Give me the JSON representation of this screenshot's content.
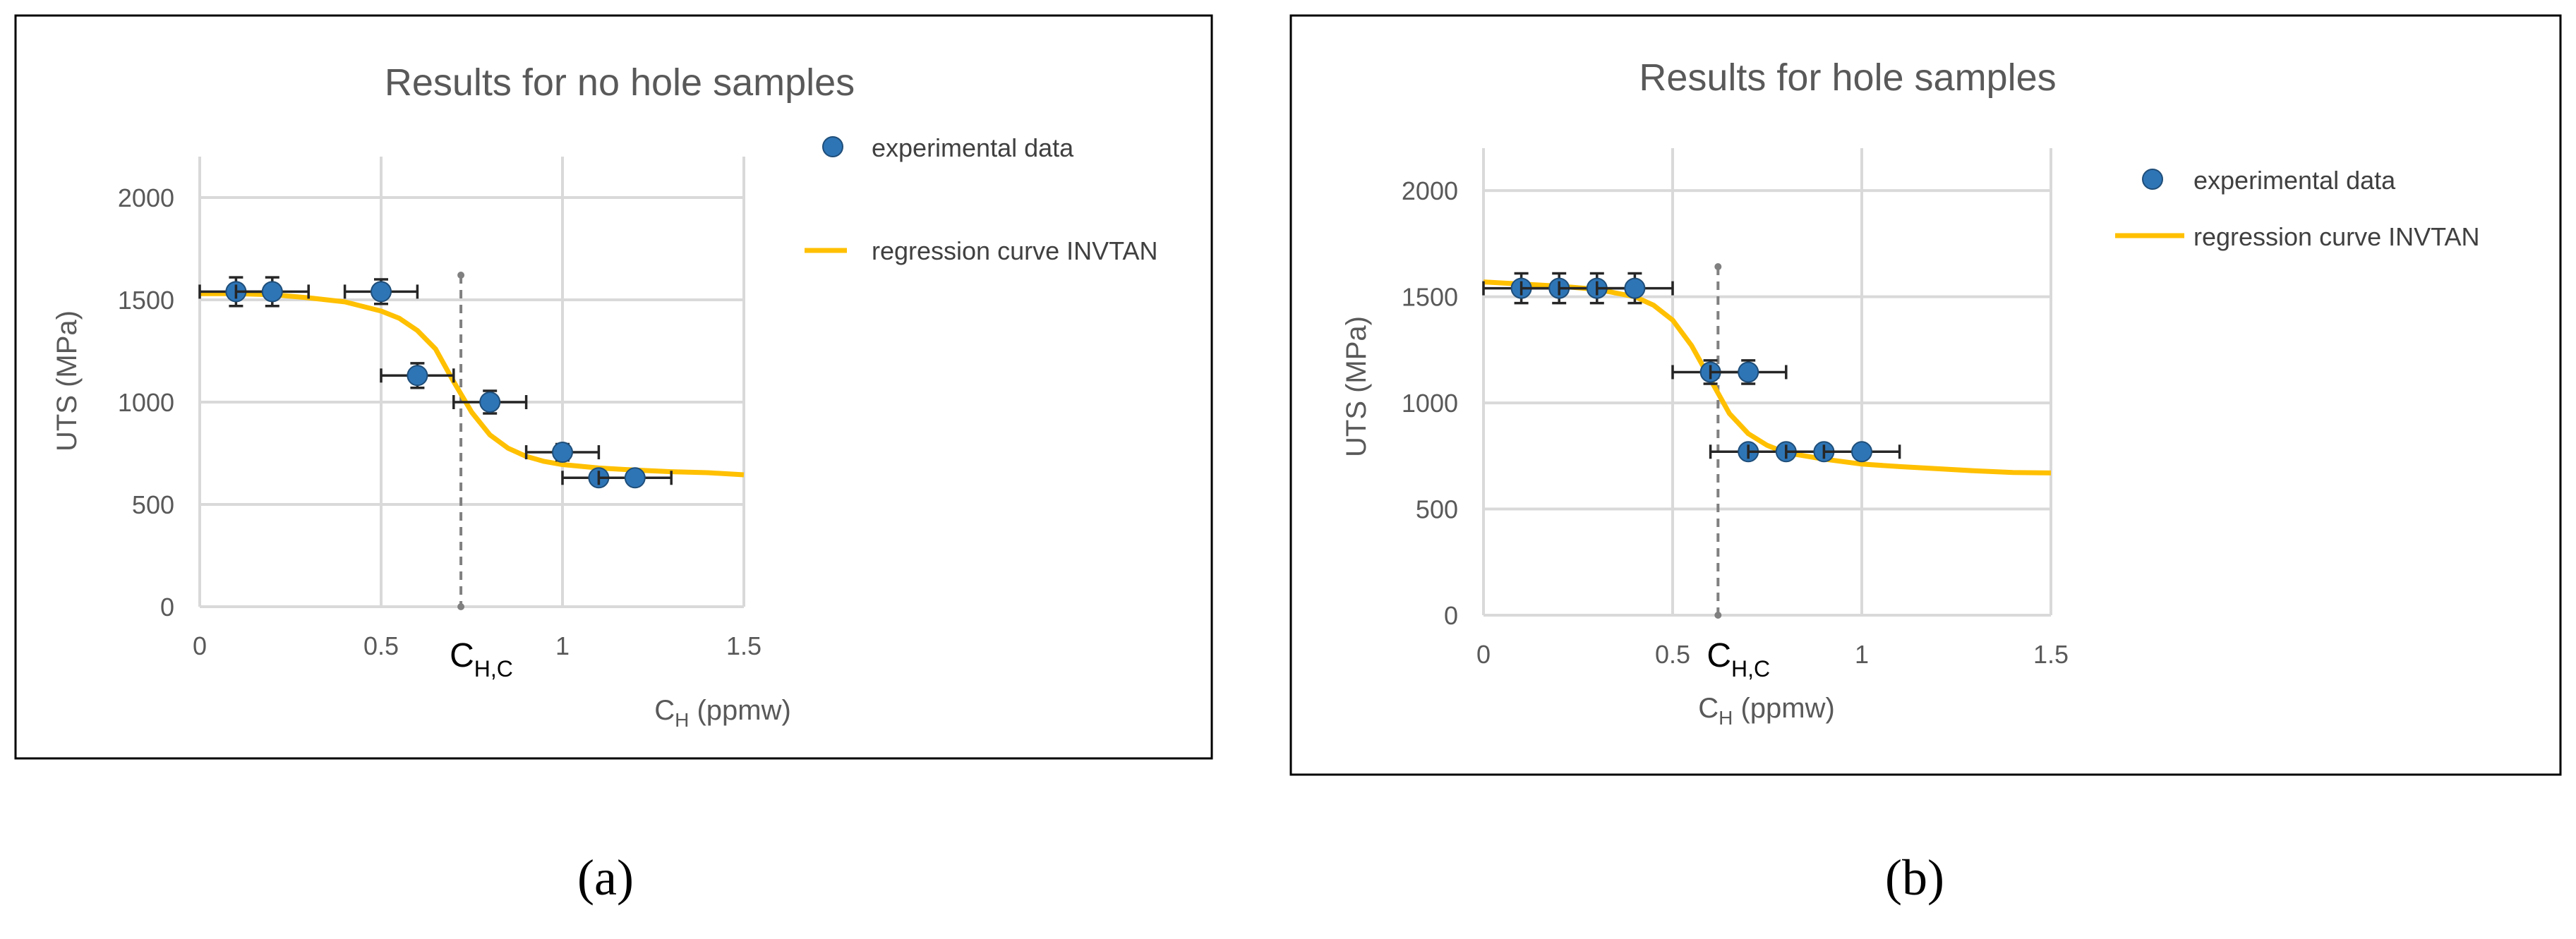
{
  "chart_data": [
    {
      "panel_label": "(a)",
      "type": "scatter",
      "title": "Results for no hole samples",
      "xlabel": "C",
      "xlabel_sub": "H",
      "xlabel_unit": " (ppmw)",
      "ylabel": "UTS (MPa)",
      "xlim": [
        0,
        1.5
      ],
      "ylim": [
        0,
        2200
      ],
      "xticks": [
        0,
        0.5,
        1,
        1.5
      ],
      "xtick_labels": [
        "0",
        "0.5",
        "1",
        "1.5"
      ],
      "yticks": [
        0,
        500,
        1000,
        1500,
        2000
      ],
      "ytick_labels": [
        "0",
        "500",
        "1000",
        "1500",
        "2000"
      ],
      "grid": true,
      "critical": {
        "label": "C",
        "sub": "H,C",
        "x": 0.72
      },
      "series": [
        {
          "name": "experimental data",
          "kind": "points",
          "color": "#2E75B6",
          "points": [
            {
              "x": 0.1,
              "y": 1540,
              "xerr": 0.1,
              "yerr": 70
            },
            {
              "x": 0.2,
              "y": 1540,
              "xerr": 0.1,
              "yerr": 70
            },
            {
              "x": 0.5,
              "y": 1540,
              "xerr": 0.1,
              "yerr": 60
            },
            {
              "x": 0.6,
              "y": 1130,
              "xerr": 0.1,
              "yerr": 60
            },
            {
              "x": 0.8,
              "y": 1000,
              "xerr": 0.1,
              "yerr": 55
            },
            {
              "x": 1.0,
              "y": 755,
              "xerr": 0.1,
              "yerr": 40
            },
            {
              "x": 1.1,
              "y": 630,
              "xerr": 0.1,
              "yerr": 30
            },
            {
              "x": 1.2,
              "y": 630,
              "xerr": 0.1,
              "yerr": 30
            }
          ]
        },
        {
          "name": "regression curve INVTAN",
          "kind": "curve",
          "color": "#FFC000",
          "x": [
            0,
            0.1,
            0.2,
            0.3,
            0.4,
            0.5,
            0.55,
            0.6,
            0.65,
            0.7,
            0.75,
            0.8,
            0.85,
            0.9,
            0.95,
            1.0,
            1.1,
            1.2,
            1.3,
            1.4,
            1.5
          ],
          "y": [
            1530,
            1530,
            1525,
            1510,
            1490,
            1445,
            1410,
            1350,
            1260,
            1100,
            950,
            840,
            775,
            735,
            710,
            695,
            678,
            668,
            660,
            655,
            645
          ]
        }
      ]
    },
    {
      "panel_label": "(b)",
      "type": "scatter",
      "title": "Results for hole samples",
      "xlabel": "C",
      "xlabel_sub": "H",
      "xlabel_unit": " (ppmw)",
      "ylabel": "UTS (MPa)",
      "xlim": [
        0,
        1.5
      ],
      "ylim": [
        0,
        2200
      ],
      "xticks": [
        0,
        0.5,
        1,
        1.5
      ],
      "xtick_labels": [
        "0",
        "0.5",
        "1",
        "1.5"
      ],
      "yticks": [
        0,
        500,
        1000,
        1500,
        2000
      ],
      "ytick_labels": [
        "0",
        "500",
        "1000",
        "1500",
        "2000"
      ],
      "grid": true,
      "critical": {
        "label": "C",
        "sub": "H,C",
        "x": 0.62
      },
      "series": [
        {
          "name": "experimental data",
          "kind": "points",
          "color": "#2E75B6",
          "points": [
            {
              "x": 0.1,
              "y": 1540,
              "xerr": 0.1,
              "yerr": 70
            },
            {
              "x": 0.2,
              "y": 1540,
              "xerr": 0.1,
              "yerr": 70
            },
            {
              "x": 0.3,
              "y": 1540,
              "xerr": 0.1,
              "yerr": 70
            },
            {
              "x": 0.4,
              "y": 1540,
              "xerr": 0.1,
              "yerr": 70
            },
            {
              "x": 0.6,
              "y": 1145,
              "xerr": 0.1,
              "yerr": 55
            },
            {
              "x": 0.7,
              "y": 1145,
              "xerr": 0.1,
              "yerr": 55
            },
            {
              "x": 0.7,
              "y": 770,
              "xerr": 0.1,
              "yerr": 25
            },
            {
              "x": 0.8,
              "y": 770,
              "xerr": 0.1,
              "yerr": 25
            },
            {
              "x": 0.9,
              "y": 770,
              "xerr": 0.1,
              "yerr": 25
            },
            {
              "x": 1.0,
              "y": 770,
              "xerr": 0.1,
              "yerr": 25
            }
          ]
        },
        {
          "name": "regression curve INVTAN",
          "kind": "curve",
          "color": "#FFC000",
          "x": [
            0,
            0.1,
            0.2,
            0.3,
            0.4,
            0.45,
            0.5,
            0.55,
            0.6,
            0.65,
            0.7,
            0.75,
            0.8,
            0.9,
            1.0,
            1.1,
            1.2,
            1.3,
            1.4,
            1.5
          ],
          "y": [
            1570,
            1560,
            1550,
            1535,
            1500,
            1460,
            1390,
            1270,
            1110,
            950,
            855,
            800,
            765,
            735,
            712,
            700,
            690,
            680,
            672,
            670
          ]
        }
      ]
    }
  ]
}
